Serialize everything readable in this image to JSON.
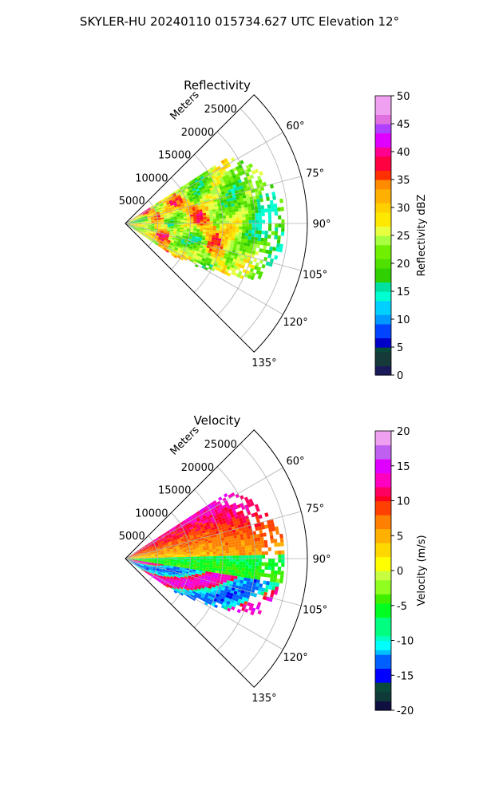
{
  "suptitle": "SKYLER-HU  20240110  015734.627 UTC Elevation 12°",
  "colors": {
    "grid": "#b0b0b0",
    "frame": "#000000"
  },
  "chart_data": [
    {
      "type": "heatmap",
      "projection": "polar-sector",
      "title": "Reflectivity",
      "radial_label": "Meters",
      "radial_ticks": [
        5000,
        10000,
        15000,
        20000,
        25000
      ],
      "radial_tick_labels": [
        "5000",
        "10000",
        "15000",
        "20000",
        "25000"
      ],
      "rlim": [
        0,
        28000
      ],
      "theta_ticks": [
        60,
        75,
        90,
        105,
        120,
        135
      ],
      "theta_tick_labels": [
        "60°",
        "75°",
        "90°",
        "105°",
        "120°",
        "135°"
      ],
      "theta_range": [
        45,
        135
      ],
      "grid": true,
      "colorbar": {
        "label": "Reflectivity dBZ",
        "range": [
          0,
          50
        ],
        "ticks": [
          0,
          5,
          10,
          15,
          20,
          25,
          30,
          35,
          40,
          45,
          50
        ],
        "tick_labels": [
          "0",
          "5",
          "10",
          "15",
          "20",
          "25",
          "30",
          "35",
          "40",
          "45",
          "50"
        ]
      },
      "approx_field_summary": {
        "azimuth_coverage_deg": [
          57,
          124
        ],
        "max_range_m": 24500,
        "dominant_range_dbz": [
          18,
          30
        ],
        "max_dbz": 38
      }
    },
    {
      "type": "heatmap",
      "projection": "polar-sector",
      "title": "Velocity",
      "radial_label": "Meters",
      "radial_ticks": [
        5000,
        10000,
        15000,
        20000,
        25000
      ],
      "radial_tick_labels": [
        "5000",
        "10000",
        "15000",
        "20000",
        "25000"
      ],
      "rlim": [
        0,
        28000
      ],
      "theta_ticks": [
        60,
        75,
        90,
        105,
        120,
        135
      ],
      "theta_tick_labels": [
        "60°",
        "75°",
        "90°",
        "105°",
        "120°",
        "135°"
      ],
      "theta_range": [
        45,
        135
      ],
      "grid": true,
      "colorbar": {
        "label": "Velocity (m/s)",
        "range": [
          -20,
          20
        ],
        "ticks": [
          -20,
          -15,
          -10,
          -5,
          0,
          5,
          10,
          15,
          20
        ],
        "tick_labels": [
          "-20",
          "-15",
          "-10",
          "-5",
          "0",
          "5",
          "10",
          "15",
          "20"
        ]
      },
      "approx_field_summary": {
        "azimuth_coverage_deg": [
          57,
          124
        ],
        "max_range_m": 24500,
        "north_sector_ms": [
          5,
          12
        ],
        "south_sector_ms": [
          -12,
          15
        ]
      }
    }
  ]
}
